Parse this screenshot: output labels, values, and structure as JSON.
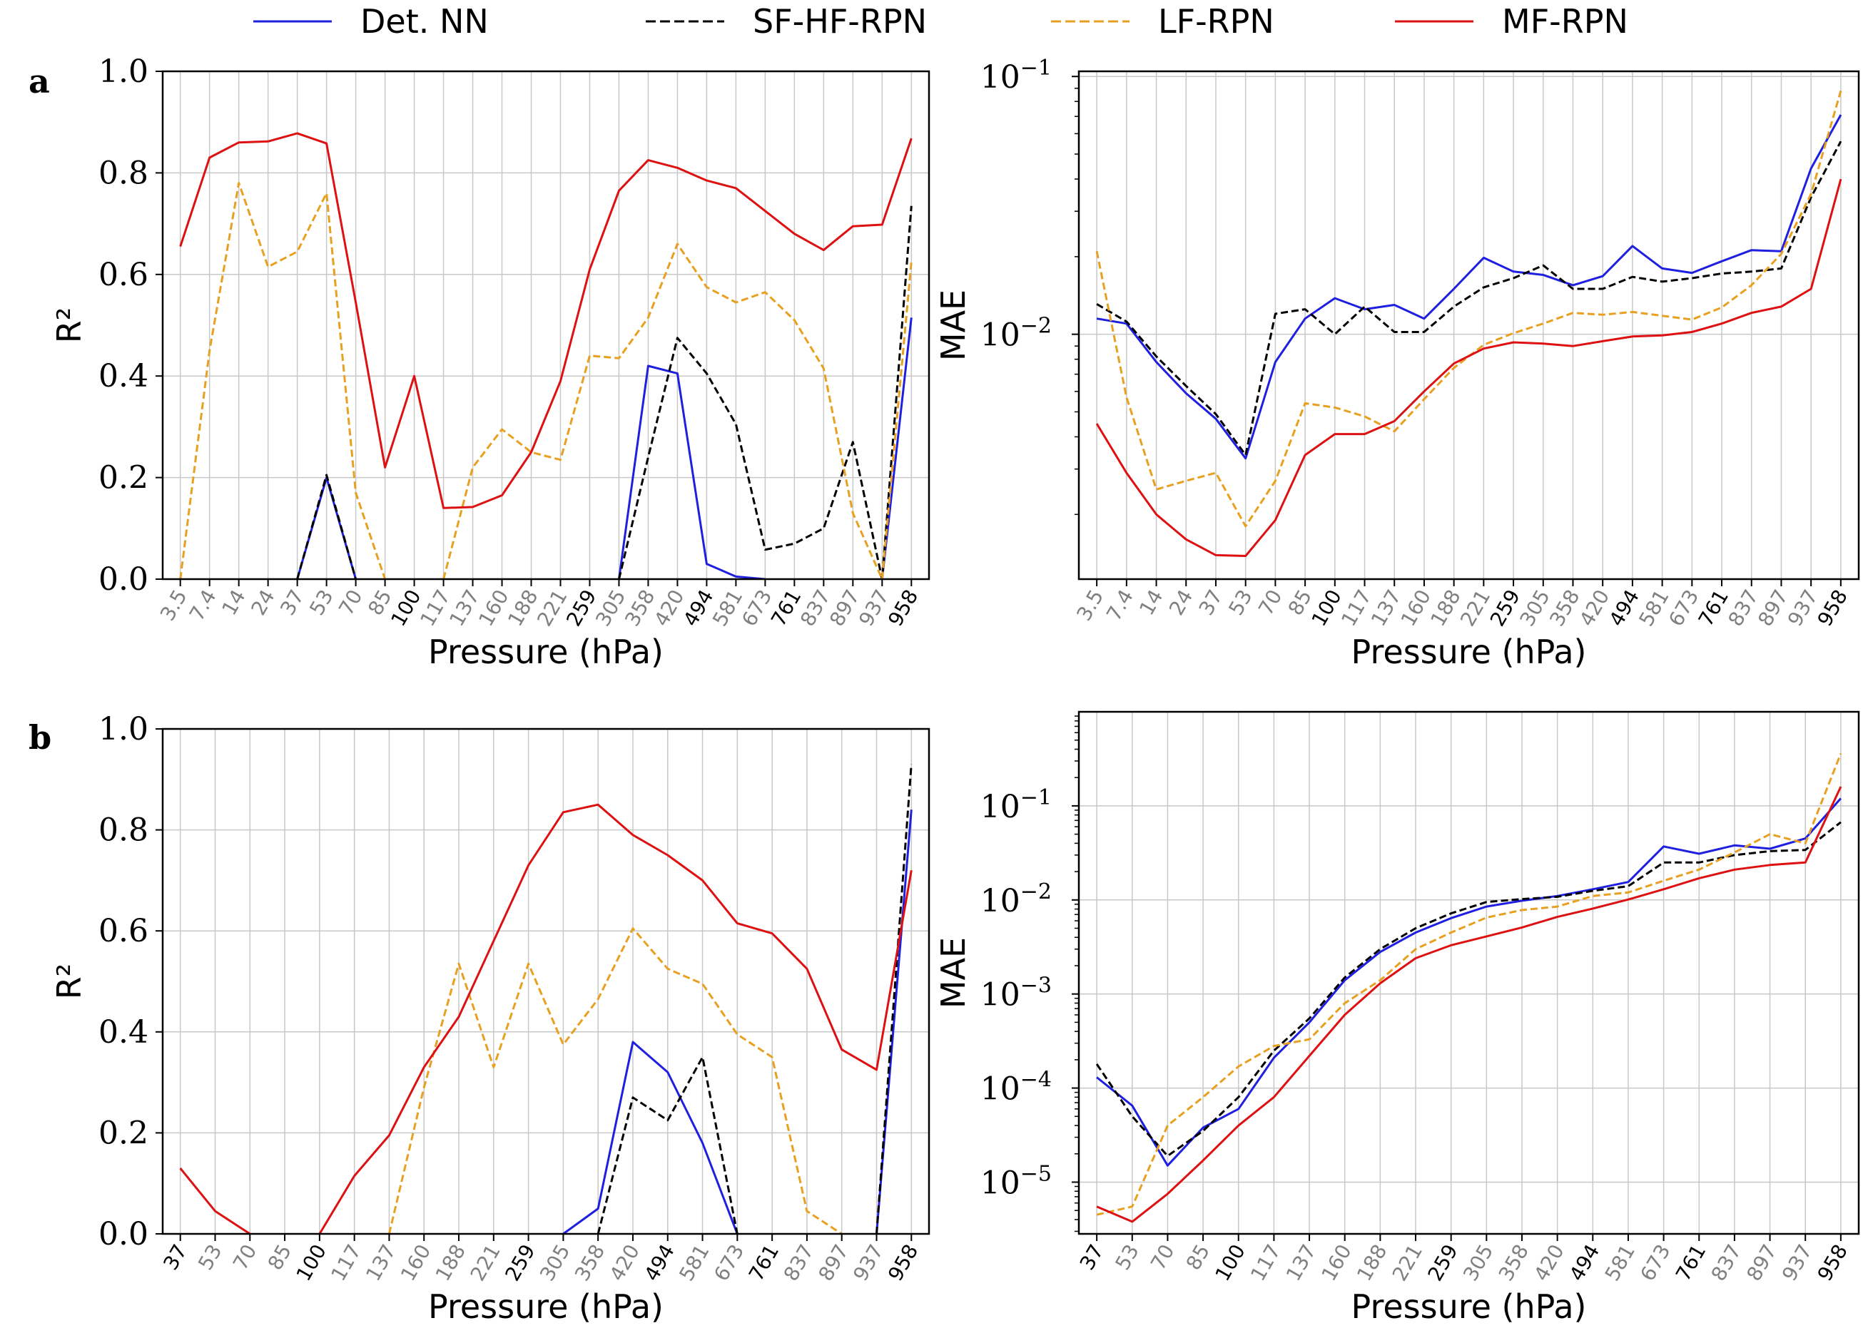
{
  "legend": [
    {
      "label": "Det. NN",
      "color": "#1f1fe0",
      "dash": "solid"
    },
    {
      "label": "SF-HF-RPN",
      "color": "#000000",
      "dash": "dashed"
    },
    {
      "label": "LF-RPN",
      "color": "#e8a020",
      "dash": "dashed"
    },
    {
      "label": "MF-RPN",
      "color": "#dd1111",
      "dash": "solid"
    }
  ],
  "chart_data": [
    {
      "panel": "a",
      "type": "line",
      "scale": "linear",
      "xlabel": "Pressure (hPa)",
      "ylabel": "R²",
      "ylim": [
        0,
        1
      ],
      "yticks": [
        "0.0",
        "0.2",
        "0.4",
        "0.6",
        "0.8",
        "1.0"
      ],
      "categories": [
        "3.5",
        "7.4",
        "14",
        "24",
        "37",
        "53",
        "70",
        "85",
        "100",
        "117",
        "137",
        "160",
        "188",
        "221",
        "259",
        "305",
        "358",
        "420",
        "494",
        "581",
        "673",
        "761",
        "837",
        "897",
        "937",
        "958"
      ],
      "bold_ticks": [
        "100",
        "259",
        "494",
        "761",
        "958"
      ],
      "series": [
        {
          "name": "Det. NN",
          "values": [
            null,
            null,
            null,
            null,
            0,
            0.2,
            0,
            null,
            null,
            null,
            null,
            null,
            null,
            null,
            null,
            0,
            0.42,
            0.405,
            0.03,
            0.005,
            0,
            null,
            null,
            null,
            0,
            0.515
          ]
        },
        {
          "name": "SF-HF-RPN",
          "values": [
            null,
            null,
            null,
            null,
            0,
            0.205,
            0,
            null,
            null,
            null,
            null,
            null,
            null,
            null,
            null,
            0,
            0.24,
            0.475,
            0.405,
            0.305,
            0.058,
            0.07,
            0.1,
            0.27,
            0,
            0.735
          ]
        },
        {
          "name": "LF-RPN",
          "values": [
            0,
            0.45,
            0.78,
            0.615,
            0.645,
            0.76,
            0.17,
            0,
            null,
            0,
            0.22,
            0.295,
            0.25,
            0.235,
            0.44,
            0.435,
            0.515,
            0.66,
            0.575,
            0.545,
            0.565,
            0.51,
            0.415,
            0.13,
            0,
            0.625
          ]
        },
        {
          "name": "MF-RPN",
          "values": [
            0.655,
            0.83,
            0.86,
            0.862,
            0.878,
            0.858,
            0.545,
            0.22,
            0.4,
            0.14,
            0.142,
            0.165,
            0.25,
            0.39,
            0.61,
            0.765,
            0.825,
            0.81,
            0.785,
            0.77,
            0.725,
            0.68,
            0.648,
            0.695,
            0.698,
            0.868
          ]
        }
      ]
    },
    {
      "panel": "a-mae",
      "type": "line",
      "scale": "log",
      "xlabel": "Pressure (hPa)",
      "ylabel": "MAE",
      "ylim_log10": [
        -2.95,
        -0.98
      ],
      "yticks": [
        {
          "exp": -1,
          "label": "10",
          "sup": "−1"
        },
        {
          "exp": -2,
          "label": "10",
          "sup": "−2"
        }
      ],
      "categories": [
        "3.5",
        "7.4",
        "14",
        "24",
        "37",
        "53",
        "70",
        "85",
        "100",
        "117",
        "137",
        "160",
        "188",
        "221",
        "259",
        "305",
        "358",
        "420",
        "494",
        "581",
        "673",
        "761",
        "837",
        "897",
        "937",
        "958"
      ],
      "bold_ticks": [
        "100",
        "259",
        "494",
        "761",
        "958"
      ],
      "series": [
        {
          "name": "Det. NN",
          "values": [
            0.0115,
            0.011,
            0.0078,
            0.0059,
            0.0047,
            0.0033,
            0.0078,
            0.0115,
            0.0138,
            0.0125,
            0.013,
            0.0115,
            0.015,
            0.0198,
            0.0175,
            0.017,
            0.0155,
            0.0168,
            0.022,
            0.018,
            0.0173,
            0.0192,
            0.0212,
            0.021,
            0.044,
            0.071
          ]
        },
        {
          "name": "SF-HF-RPN",
          "values": [
            0.0131,
            0.0112,
            0.0082,
            0.0063,
            0.0049,
            0.0034,
            0.012,
            0.0125,
            0.01,
            0.0128,
            0.0102,
            0.0102,
            0.0128,
            0.0152,
            0.0165,
            0.0185,
            0.015,
            0.015,
            0.0167,
            0.016,
            0.0165,
            0.0172,
            0.0175,
            0.018,
            0.034,
            0.056
          ]
        },
        {
          "name": "LF-RPN",
          "values": [
            0.021,
            0.0057,
            0.0025,
            0.0027,
            0.0029,
            0.0018,
            0.0027,
            0.0054,
            0.0052,
            0.0048,
            0.0042,
            0.0056,
            0.0074,
            0.0091,
            0.0101,
            0.011,
            0.0121,
            0.0119,
            0.0122,
            0.0118,
            0.0114,
            0.0127,
            0.0155,
            0.0205,
            0.035,
            0.088
          ]
        },
        {
          "name": "MF-RPN",
          "values": [
            0.0045,
            0.0029,
            0.002,
            0.0016,
            0.00139,
            0.00138,
            0.0019,
            0.0034,
            0.0041,
            0.0041,
            0.0046,
            0.006,
            0.0077,
            0.0088,
            0.0093,
            0.0092,
            0.009,
            0.0094,
            0.0098,
            0.0099,
            0.0102,
            0.011,
            0.0121,
            0.0128,
            0.015,
            0.04
          ]
        }
      ]
    },
    {
      "panel": "b",
      "type": "line",
      "scale": "linear",
      "xlabel": "Pressure (hPa)",
      "ylabel": "R²",
      "ylim": [
        0,
        1
      ],
      "yticks": [
        "0.0",
        "0.2",
        "0.4",
        "0.6",
        "0.8",
        "1.0"
      ],
      "categories": [
        "37",
        "53",
        "70",
        "85",
        "100",
        "117",
        "137",
        "160",
        "188",
        "221",
        "259",
        "305",
        "358",
        "420",
        "494",
        "581",
        "673",
        "761",
        "837",
        "897",
        "937",
        "958"
      ],
      "bold_ticks": [
        "37",
        "100",
        "259",
        "494",
        "761",
        "958"
      ],
      "series": [
        {
          "name": "Det. NN",
          "values": [
            null,
            null,
            null,
            null,
            null,
            null,
            null,
            null,
            null,
            null,
            null,
            0,
            0.05,
            0.38,
            0.32,
            0.18,
            0,
            null,
            null,
            null,
            0,
            0.84
          ]
        },
        {
          "name": "SF-HF-RPN",
          "values": [
            null,
            null,
            null,
            null,
            null,
            null,
            null,
            null,
            null,
            null,
            null,
            null,
            0,
            0.27,
            0.225,
            0.35,
            0,
            null,
            null,
            null,
            0,
            0.93
          ]
        },
        {
          "name": "LF-RPN",
          "values": [
            null,
            null,
            null,
            null,
            null,
            null,
            0,
            0.29,
            0.535,
            0.33,
            0.535,
            0.375,
            0.465,
            0.605,
            0.525,
            0.495,
            0.395,
            0.35,
            0.045,
            0,
            null,
            0.71
          ]
        },
        {
          "name": "MF-RPN",
          "values": [
            0.13,
            0.045,
            0,
            null,
            0,
            0.115,
            0.195,
            0.33,
            0.43,
            0.58,
            0.73,
            0.835,
            0.85,
            0.79,
            0.75,
            0.7,
            0.615,
            0.595,
            0.525,
            0.365,
            0.325,
            0.72
          ]
        }
      ]
    },
    {
      "panel": "b-mae",
      "type": "line",
      "scale": "log",
      "xlabel": "Pressure (hPa)",
      "ylabel": "MAE",
      "ylim_log10": [
        -5.55,
        0.0
      ],
      "yticks": [
        {
          "exp": -1,
          "label": "10",
          "sup": "−1"
        },
        {
          "exp": -2,
          "label": "10",
          "sup": "−2"
        },
        {
          "exp": -3,
          "label": "10",
          "sup": "−3"
        },
        {
          "exp": -4,
          "label": "10",
          "sup": "−4"
        },
        {
          "exp": -5,
          "label": "10",
          "sup": "−5"
        }
      ],
      "categories": [
        "37",
        "53",
        "70",
        "85",
        "100",
        "117",
        "137",
        "160",
        "188",
        "221",
        "259",
        "305",
        "358",
        "420",
        "494",
        "581",
        "673",
        "761",
        "837",
        "897",
        "937",
        "958"
      ],
      "bold_ticks": [
        "37",
        "100",
        "259",
        "494",
        "761",
        "958"
      ],
      "series": [
        {
          "name": "Det. NN",
          "values": [
            0.00013,
            6.5e-05,
            1.5e-05,
            3.8e-05,
            6e-05,
            0.00021,
            0.0005,
            0.0014,
            0.0028,
            0.0045,
            0.0064,
            0.0085,
            0.0098,
            0.011,
            0.013,
            0.0155,
            0.037,
            0.031,
            0.038,
            0.035,
            0.045,
            0.12
          ]
        },
        {
          "name": "SF-HF-RPN",
          "values": [
            0.00018,
            5e-05,
            1.9e-05,
            3.5e-05,
            8e-05,
            0.00025,
            0.00055,
            0.0015,
            0.003,
            0.005,
            0.0072,
            0.0095,
            0.0102,
            0.0108,
            0.0125,
            0.014,
            0.025,
            0.025,
            0.03,
            0.033,
            0.034,
            0.067
          ]
        },
        {
          "name": "LF-RPN",
          "values": [
            4.5e-06,
            5.5e-06,
            4e-05,
            8e-05,
            0.00017,
            0.00028,
            0.00033,
            0.0008,
            0.0014,
            0.003,
            0.0045,
            0.0065,
            0.0078,
            0.0085,
            0.011,
            0.012,
            0.016,
            0.021,
            0.032,
            0.05,
            0.04,
            0.36
          ]
        },
        {
          "name": "MF-RPN",
          "values": [
            5.5e-06,
            3.8e-06,
            7.5e-06,
            1.7e-05,
            4e-05,
            8e-05,
            0.00022,
            0.0006,
            0.0013,
            0.0024,
            0.0033,
            0.0041,
            0.0051,
            0.0066,
            0.0081,
            0.0101,
            0.013,
            0.017,
            0.021,
            0.0235,
            0.025,
            0.16
          ]
        }
      ]
    }
  ]
}
